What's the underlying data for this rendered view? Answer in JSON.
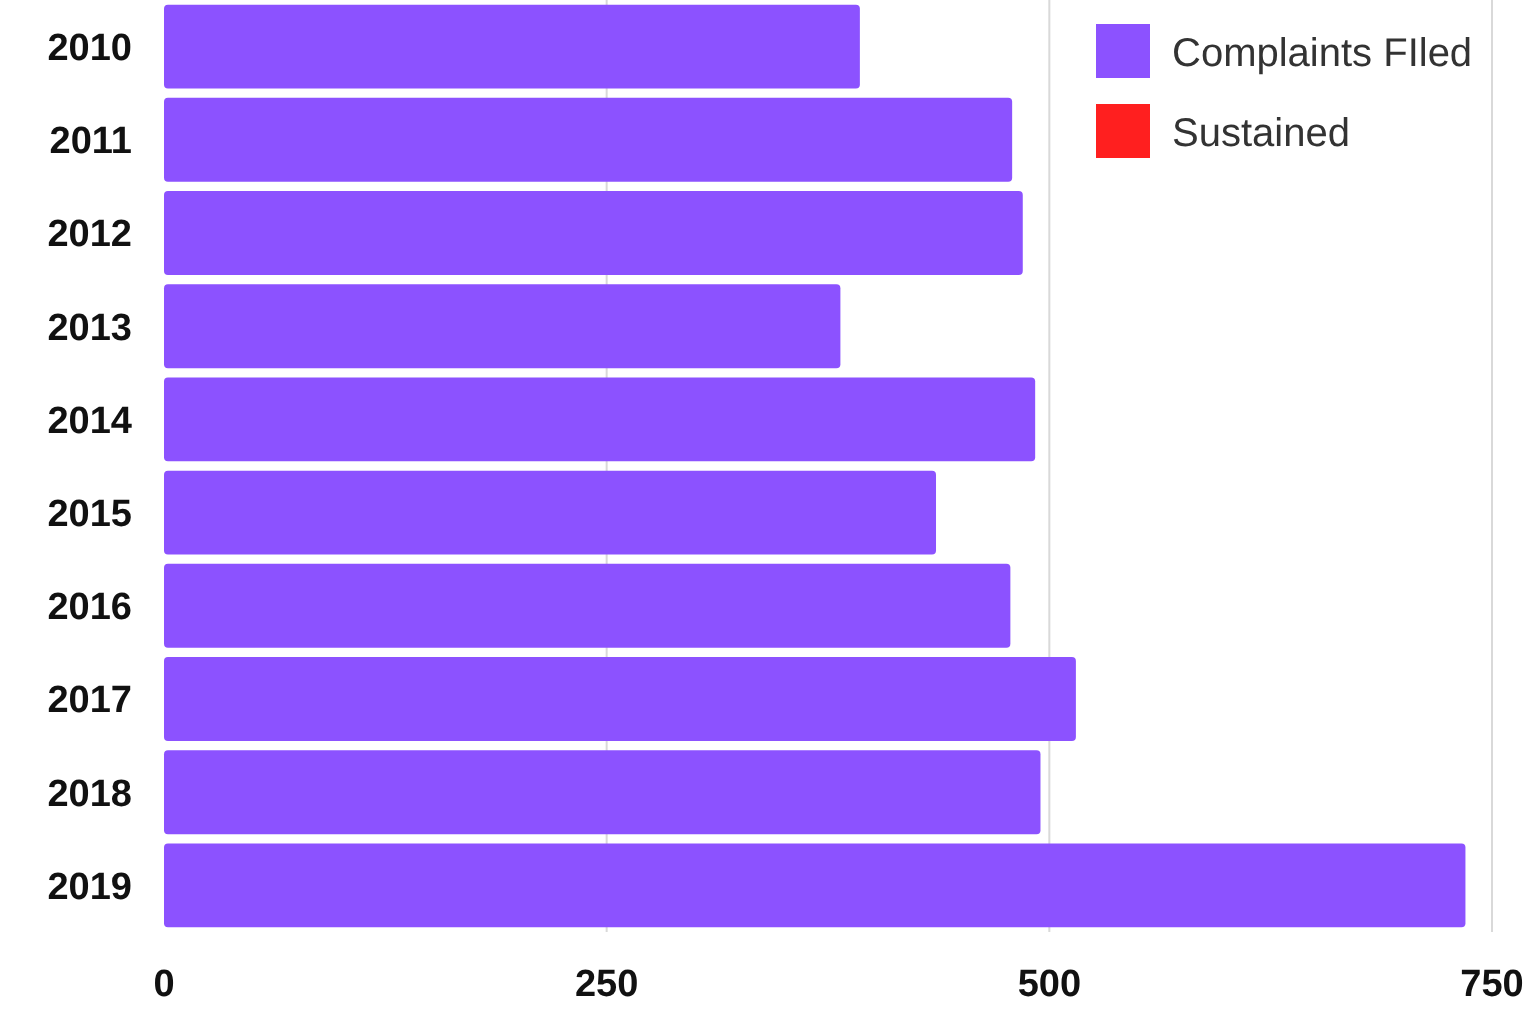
{
  "chart_data": {
    "type": "bar",
    "orientation": "horizontal",
    "categories": [
      "2010",
      "2011",
      "2012",
      "2013",
      "2014",
      "2015",
      "2016",
      "2017",
      "2018",
      "2019"
    ],
    "series": [
      {
        "name": "Complaints FIled",
        "color": "#8c52ff",
        "values": [
          393,
          479,
          485,
          382,
          492,
          436,
          478,
          515,
          495,
          735
        ]
      },
      {
        "name": "Sustained",
        "color": "#ff1f1f",
        "values": [
          null,
          null,
          null,
          null,
          null,
          null,
          null,
          null,
          null,
          null
        ]
      }
    ],
    "xlim": [
      0,
      750
    ],
    "xticks": [
      0,
      250,
      500,
      750
    ],
    "grid": "x",
    "legend": "top right"
  }
}
